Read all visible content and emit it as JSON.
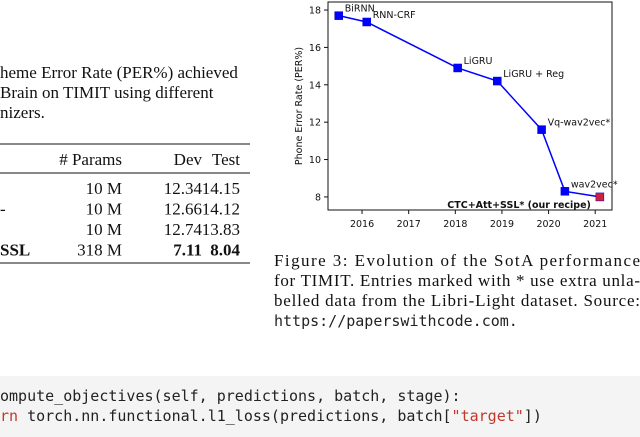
{
  "left_text": {
    "lines": [
      "heme Error Rate (PER%) achieved",
      "Brain on TIMIT using different",
      "nizers."
    ]
  },
  "table": {
    "header": [
      "# Params",
      "Dev",
      "Test"
    ],
    "rows": [
      {
        "params": "10 M",
        "dev": "12.34",
        "test": "14.15"
      },
      {
        "label": "-",
        "params": "10 M",
        "dev": "12.66",
        "test": "14.12"
      },
      {
        "params": "10 M",
        "dev": "12.74",
        "test": "13.83"
      },
      {
        "label": "SSL",
        "params": "318 M",
        "dev": "7.11",
        "test": "8.04",
        "bold": true
      }
    ]
  },
  "chart_data": {
    "type": "line",
    "y_label": "Phone Error Rate (PER%)",
    "x": [
      2015.5,
      2016.1,
      2018.05,
      2018.9,
      2019.85,
      2020.35,
      2021.1
    ],
    "y": [
      17.7,
      17.36,
      14.9,
      14.2,
      11.6,
      8.3,
      8.0
    ],
    "point_labels": [
      "BiRNN",
      "RNN-CRF",
      "LiGRU",
      "LiGRU + Reg",
      "Vq-wav2vec*",
      "wav2vec*",
      "CTC+Att+SSL* (our recipe)"
    ],
    "color": "#0000ff",
    "point_colors": [
      "#0000ff",
      "#0000ff",
      "#0000ff",
      "#0000ff",
      "#0000ff",
      "#0000ff",
      "#d0203a"
    ],
    "xlim": [
      2015.27,
      2021.36
    ],
    "ylim": [
      7.3,
      18.43
    ],
    "xticks": [
      2016,
      2017,
      2018,
      2019,
      2020,
      2021
    ],
    "yticks": [
      8,
      10,
      12,
      14,
      16,
      18
    ]
  },
  "caption": {
    "lines": [
      "Figure 3:  Evolution of the SotA performance",
      "for TIMIT. Entries marked with * use extra unla-",
      "belled data from the Libri-Light dataset. Source:"
    ],
    "url": "https://paperswithcode.com."
  },
  "code": {
    "lines": [
      [
        {
          "text": "ompute_objectives(self, predictions, batch, stage):",
          "kind": "plain"
        }
      ],
      [
        {
          "text": "rn",
          "kind": "keyword"
        },
        {
          "text": " torch.nn.functional.l1_loss(predictions, batch[",
          "kind": "plain"
        },
        {
          "text": "\"target\"",
          "kind": "string"
        },
        {
          "text": "])",
          "kind": "plain"
        }
      ]
    ]
  }
}
